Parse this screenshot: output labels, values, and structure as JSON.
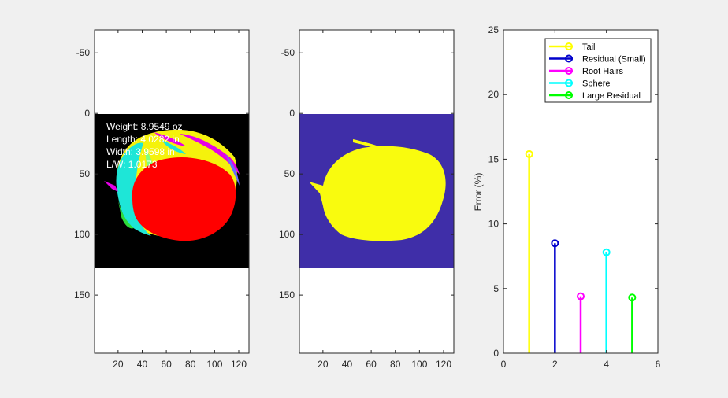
{
  "chart_data": [
    {
      "type": "image",
      "name": "segmented-image",
      "x_ticks": [
        20,
        40,
        60,
        80,
        100,
        120
      ],
      "y_ticks": [
        -50,
        0,
        50,
        100,
        150
      ],
      "xlim": [
        0.5,
        128.5
      ],
      "ylim": [
        -69,
        198
      ],
      "image_rows": [
        0.5,
        128.5
      ],
      "background_color": "#000000",
      "apple_color": "#ff0000",
      "annotations": [
        "Weight: 8.9549 oz",
        "Length: 4.0282 in",
        "Width: 3.9598 in",
        "L/W: 1.0173"
      ]
    },
    {
      "type": "image",
      "name": "binary-mask",
      "x_ticks": [
        20,
        40,
        60,
        80,
        100,
        120
      ],
      "y_ticks": [
        -50,
        0,
        50,
        100,
        150
      ],
      "xlim": [
        0.5,
        128.5
      ],
      "ylim": [
        -69,
        198
      ],
      "image_rows": [
        0.5,
        128.5
      ],
      "background_color": "#3f2ea8",
      "mask_color": "#f9fb0e"
    },
    {
      "type": "stem",
      "x": [
        1,
        2,
        3,
        4,
        5
      ],
      "values": [
        15.4,
        8.5,
        4.4,
        7.8,
        4.3
      ],
      "xlim": [
        0,
        6
      ],
      "ylim": [
        0,
        25
      ],
      "x_ticks": [
        0,
        2,
        4,
        6
      ],
      "y_ticks": [
        0,
        5,
        10,
        15,
        20,
        25
      ],
      "ylabel": "Error (%)",
      "legend_position": "top-right",
      "series": [
        {
          "name": "Tail",
          "color": "#ffff00"
        },
        {
          "name": "Residual (Small)",
          "color": "#0000cc"
        },
        {
          "name": "Root Hairs",
          "color": "#ff00ff"
        },
        {
          "name": "Sphere",
          "color": "#00ffff"
        },
        {
          "name": "Large Residual",
          "color": "#00ff00"
        }
      ]
    }
  ]
}
